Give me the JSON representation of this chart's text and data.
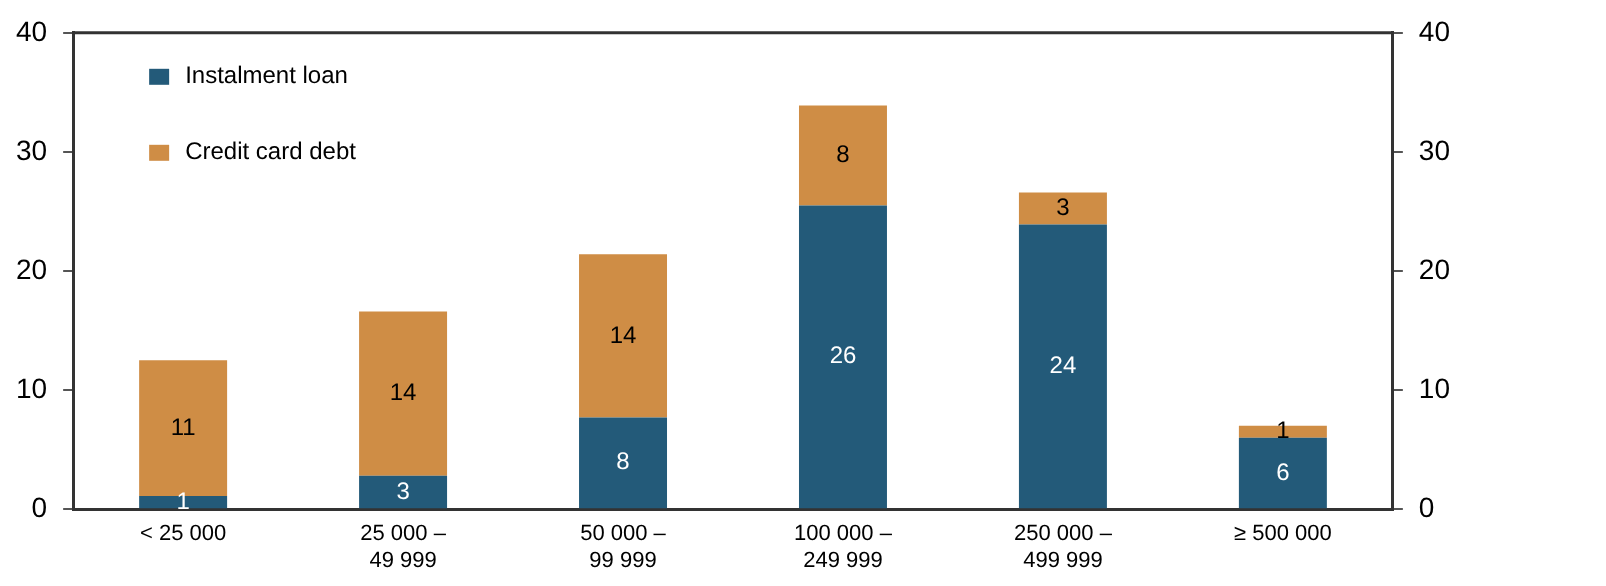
{
  "chart_data": {
    "type": "bar",
    "stacked": true,
    "categories": [
      "< 25 000",
      "25 000 –\n49 999",
      "50 000 –\n99 999",
      "100 000 –\n249 999",
      "250 000 –\n499 999",
      "≥ 500 000"
    ],
    "series": [
      {
        "name": "Instalment loan",
        "color": "#235a79",
        "values": [
          1.1,
          2.8,
          7.7,
          25.5,
          23.9,
          6.0
        ],
        "value_labels": [
          "1",
          "3",
          "8",
          "26",
          "24",
          "6"
        ]
      },
      {
        "name": "Credit card debt",
        "color": "#cf8d45",
        "values": [
          11.4,
          13.8,
          13.7,
          8.4,
          2.7,
          1.0
        ],
        "value_labels": [
          "11",
          "14",
          "14",
          "8",
          "3",
          "1"
        ]
      }
    ],
    "ylim": [
      0,
      40
    ],
    "yticks": [
      0,
      10,
      20,
      30,
      40
    ],
    "y2lim": [
      0,
      40
    ],
    "y2ticks": [
      0,
      10,
      20,
      30,
      40
    ],
    "grid": false,
    "legend": "top left"
  }
}
